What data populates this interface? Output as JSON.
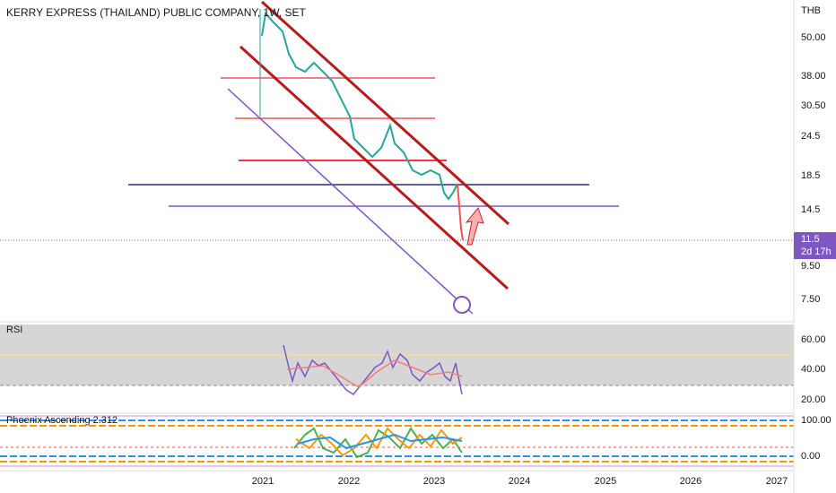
{
  "header": {
    "title": "KERRY EXPRESS (THAILAND) PUBLIC COMPANY, 1W, SET"
  },
  "price_axis": {
    "currency": "THB",
    "labels": [
      "50.00",
      "38.00",
      "30.50",
      "24.5",
      "18.5",
      "14.5",
      "9.50",
      "7.50"
    ],
    "last_price": "11.5",
    "countdown": "2d 17h"
  },
  "rsi": {
    "title": "RSI",
    "labels": [
      "60.00",
      "40.00",
      "20.00"
    ]
  },
  "indicator": {
    "title": "Phoenix Ascending 2.312",
    "labels": [
      "100.00",
      "0.00"
    ]
  },
  "time_axis": {
    "labels": [
      "2021",
      "2022",
      "2023",
      "2024",
      "2025",
      "2026",
      "2027"
    ]
  }
}
